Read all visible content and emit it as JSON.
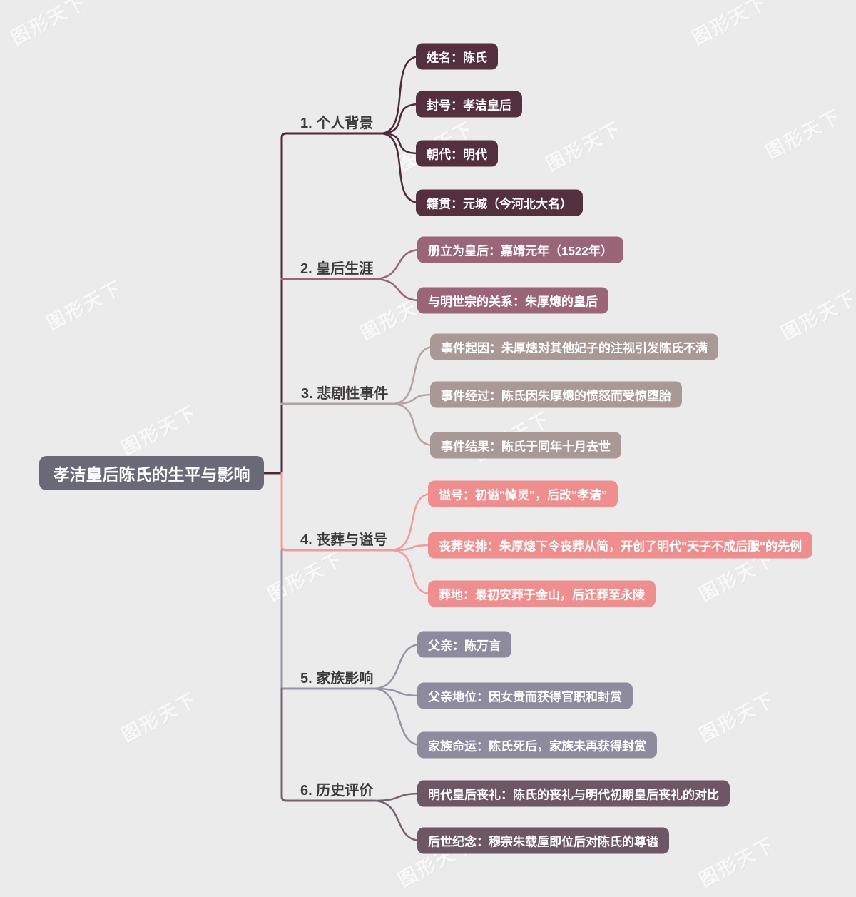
{
  "canvas": {
    "background": "#ebebeb",
    "watermark_text": "图形天下"
  },
  "root": {
    "label": "孝洁皇后陈氏的生平与影响",
    "bg": "#6a6978"
  },
  "branches": [
    {
      "label": "1. 个人背景",
      "line": "#4c2a3a",
      "bg": "#54303f",
      "children": [
        "姓名：陈氏",
        "封号：孝洁皇后",
        "朝代：明代",
        "籍贯：元城（今河北大名）"
      ]
    },
    {
      "label": "2. 皇后生涯",
      "line": "#9b6578",
      "bg": "#9b6578",
      "children": [
        "册立为皇后：嘉靖元年（1522年）",
        "与明世宗的关系：朱厚熜的皇后"
      ]
    },
    {
      "label": "3. 悲剧性事件",
      "line": "#b2a4a1",
      "bg": "#a99996",
      "children": [
        "事件起因：朱厚熜对其他妃子的注视引发陈氏不满",
        "事件经过：陈氏因朱厚熜的愤怒而受惊堕胎",
        "事件结果：陈氏于同年十月去世"
      ]
    },
    {
      "label": "4. 丧葬与谥号",
      "line": "#f19b9b",
      "bg": "#ef8e8e",
      "children": [
        "谥号：初谥\"悼灵\"，后改\"孝洁\"",
        "丧葬安排：朱厚熜下令丧葬从简，开创了明代\"天子不成后服\"的先例",
        "葬地：最初安葬于金山，后迁葬至永陵"
      ]
    },
    {
      "label": "5. 家族影响",
      "line": "#9794a6",
      "bg": "#8e8b9e",
      "children": [
        "父亲：陈万言",
        "父亲地位：因女贵而获得官职和封赏",
        "家族命运：陈氏死后，家族未再获得封赏"
      ]
    },
    {
      "label": "6. 历史评价",
      "line": "#75616e",
      "bg": "#6d5765",
      "children": [
        "明代皇后丧礼：陈氏的丧礼与明代初期皇后丧礼的对比",
        "后世纪念：穆宗朱载垕即位后对陈氏的尊谥"
      ]
    }
  ]
}
